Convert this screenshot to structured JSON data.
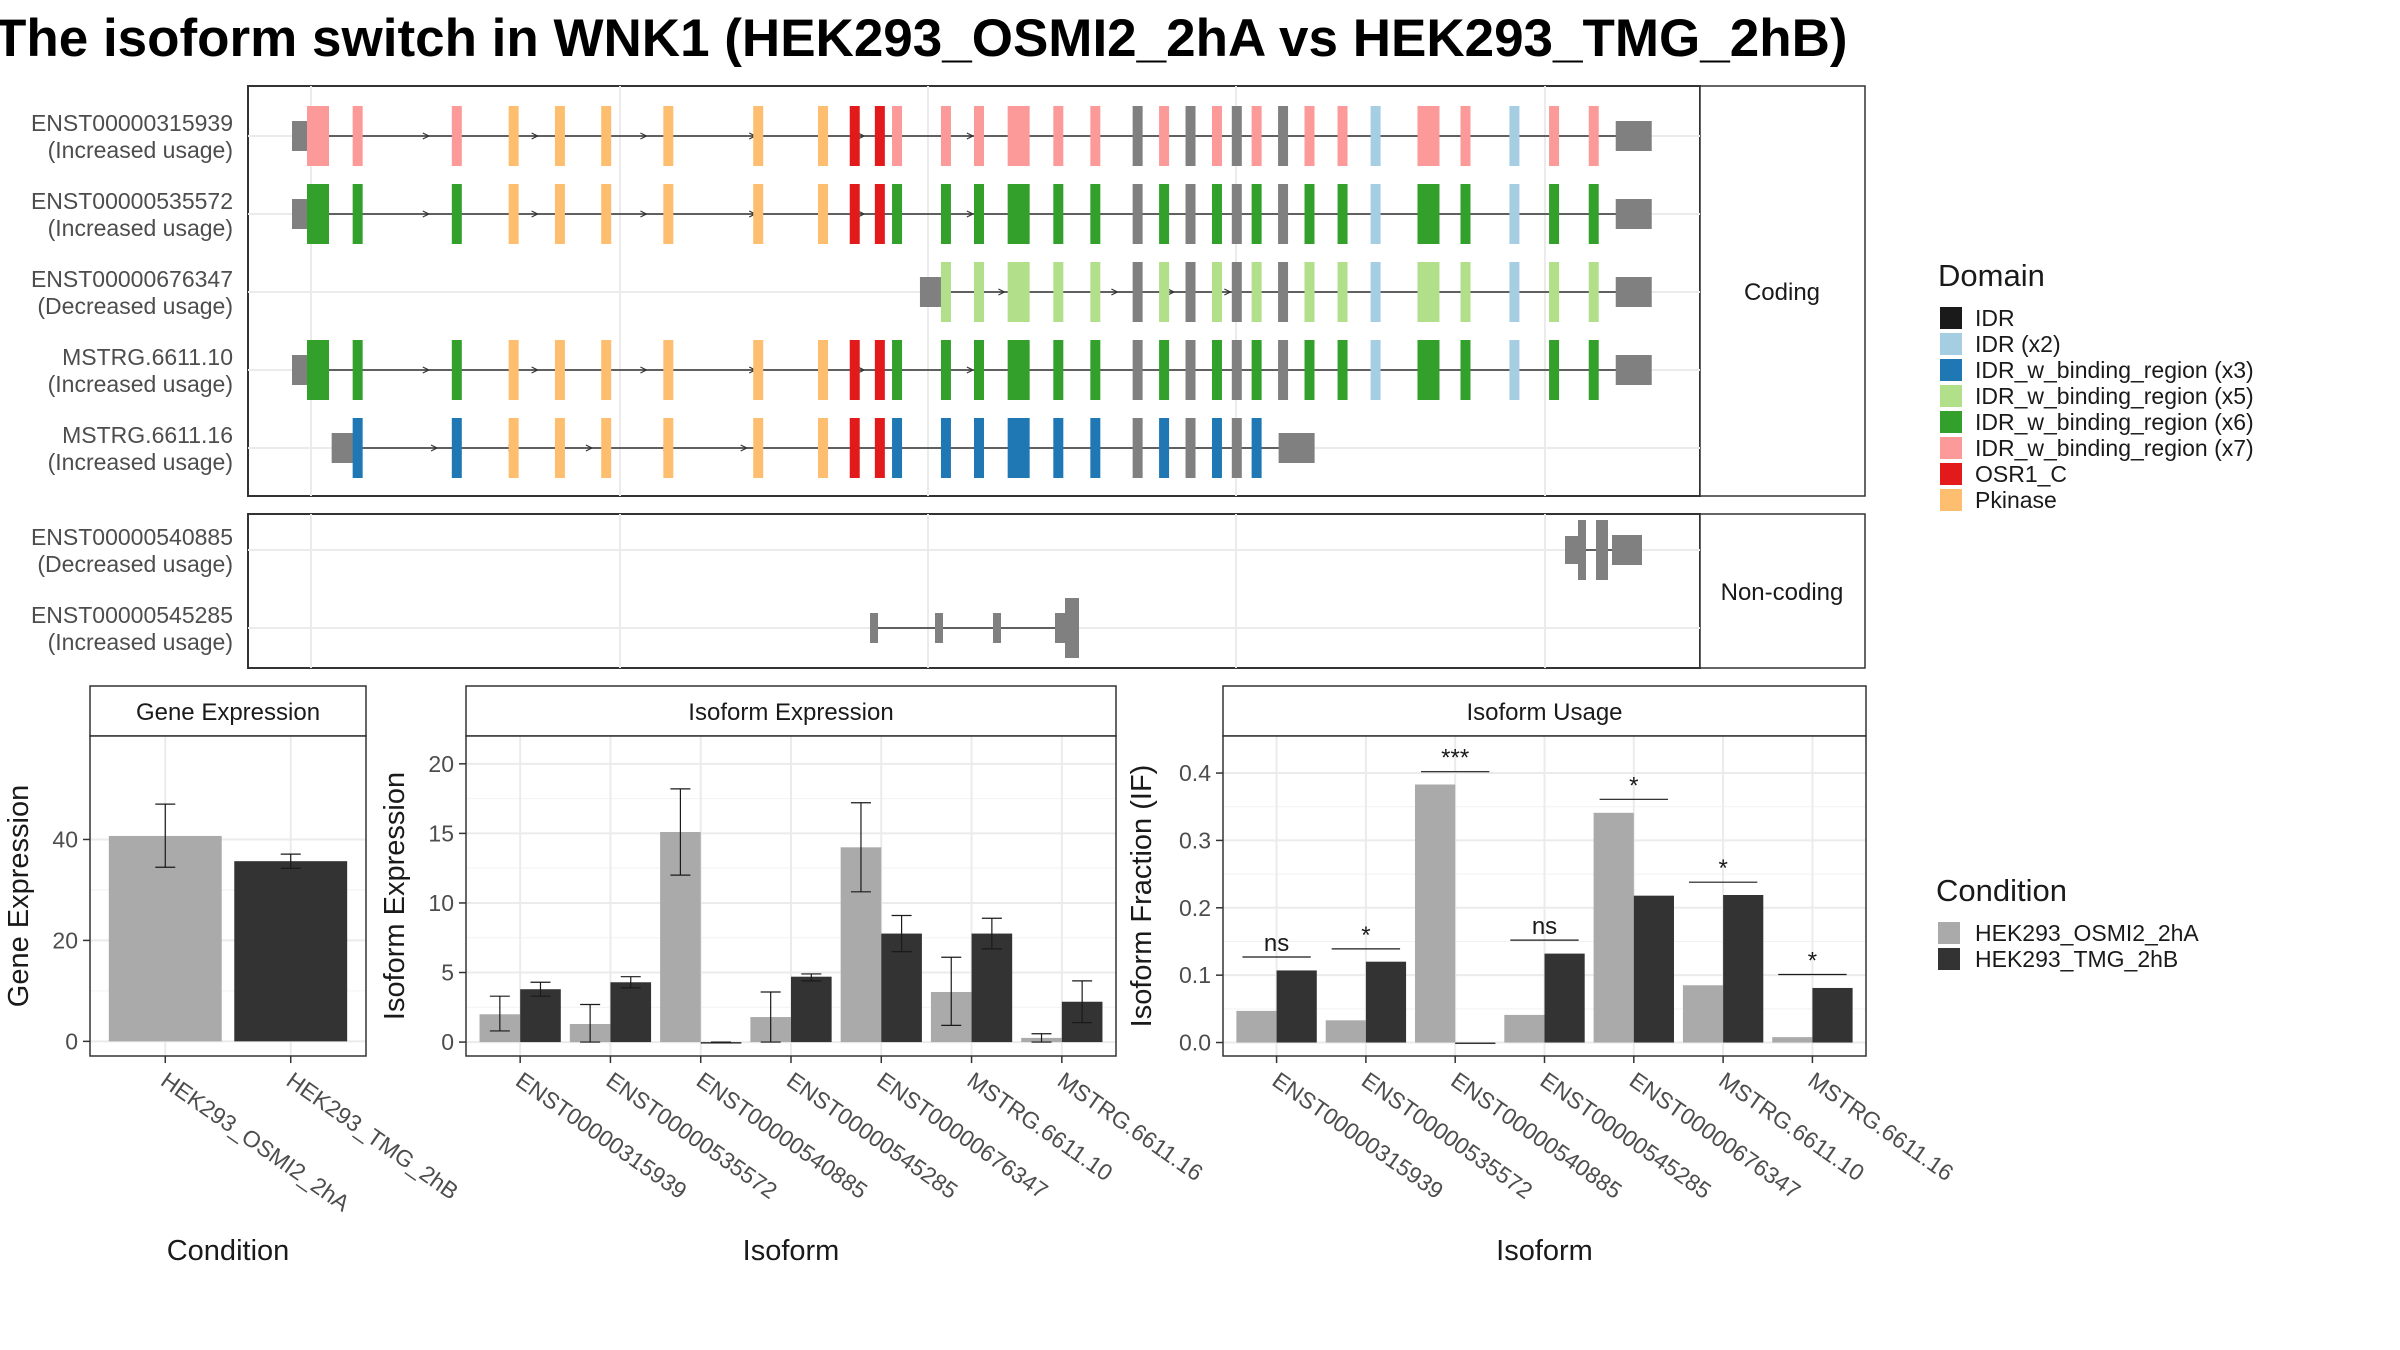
{
  "title": "The isoform switch in WNK1 (HEK293_OSMI2_2hA vs HEK293_TMG_2hB)",
  "colors": {
    "IDR": "#1a1a1a",
    "IDR (x2)": "#a6cee3",
    "IDR_w_binding_region (x3)": "#1f78b4",
    "IDR_w_binding_region (x5)": "#b2df8a",
    "IDR_w_binding_region (x6)": "#33a02c",
    "IDR_w_binding_region (x7)": "#fb9a99",
    "OSR1_C": "#e31a1c",
    "Pkinase": "#fdbf6f",
    "exon": "#808080",
    "cond_a": "#aaaaaa",
    "cond_b": "#333333"
  },
  "structure": {
    "coding_label": "Coding",
    "noncoding_label": "Non-coding",
    "coding": [
      {
        "id": "ENST00000315939",
        "status": "(Increased usage)",
        "fill": "IDR_w_binding_region (x7)",
        "start": 0.0,
        "end": 1.0,
        "utr5_end": 0.03,
        "cds_start": 0.06
      },
      {
        "id": "ENST00000535572",
        "status": "(Increased usage)",
        "fill": "IDR_w_binding_region (x6)",
        "start": 0.0,
        "end": 1.0,
        "utr5_end": 0.03,
        "cds_start": 0.06
      },
      {
        "id": "ENST00000676347",
        "status": "(Decreased usage)",
        "fill": "IDR_w_binding_region (x5)",
        "start": 0.39,
        "end": 1.0,
        "utr5_end": 0.55,
        "cds_start": 0.6
      },
      {
        "id": "MSTRG.6611.10",
        "status": "(Increased usage)",
        "fill": "IDR_w_binding_region (x6)",
        "start": 0.01,
        "end": 1.0,
        "utr5_end": 0.03,
        "cds_start": 0.06
      },
      {
        "id": "MSTRG.6611.16",
        "status": "(Increased usage)",
        "fill": "IDR_w_binding_region (x3)",
        "start": 0.03,
        "end": 0.7,
        "utr5_end": 0.04,
        "cds_start": 0.06
      }
    ],
    "noncoding": [
      {
        "id": "ENST00000540885",
        "status": "(Decreased usage)"
      },
      {
        "id": "ENST00000545285",
        "status": "(Increased usage)"
      }
    ]
  },
  "legend_domain": {
    "title": "Domain",
    "items": [
      "IDR",
      "IDR (x2)",
      "IDR_w_binding_region (x3)",
      "IDR_w_binding_region (x5)",
      "IDR_w_binding_region (x6)",
      "IDR_w_binding_region (x7)",
      "OSR1_C",
      "Pkinase"
    ]
  },
  "legend_condition": {
    "title": "Condition",
    "items": [
      "HEK293_OSMI2_2hA",
      "HEK293_TMG_2hB"
    ]
  },
  "chart_data": [
    {
      "type": "bar",
      "title": "Gene Expression",
      "xlabel": "Condition",
      "ylabel": "Gene Expression",
      "categories": [
        "HEK293_OSMI2_2hA",
        "HEK293_TMG_2hB"
      ],
      "values": [
        40.7,
        35.7
      ],
      "err_low": [
        34.5,
        34.3
      ],
      "err_high": [
        47.0,
        37.1
      ],
      "ylim": [
        -2.9,
        60.5
      ],
      "yticks": [
        0,
        20,
        40
      ],
      "grid": true
    },
    {
      "type": "bar",
      "title": "Isoform Expression",
      "xlabel": "Isoform",
      "ylabel": "Isoform Expression",
      "categories": [
        "ENST00000315939",
        "ENST00000535572",
        "ENST00000540885",
        "ENST00000545285",
        "ENST00000676347",
        "MSTRG.6611.10",
        "MSTRG.6611.16"
      ],
      "series": [
        {
          "name": "HEK293_OSMI2_2hA",
          "values": [
            2.0,
            1.3,
            15.1,
            1.8,
            14.0,
            3.6,
            0.3
          ],
          "err_low": [
            0.8,
            0.0,
            12.0,
            0.0,
            10.8,
            1.2,
            0.0
          ],
          "err_high": [
            3.3,
            2.7,
            18.2,
            3.6,
            17.2,
            6.1,
            0.6
          ]
        },
        {
          "name": "HEK293_TMG_2hB",
          "values": [
            3.8,
            4.3,
            0.0,
            4.7,
            7.8,
            7.8,
            2.9
          ],
          "err_low": [
            3.3,
            3.9,
            0.0,
            4.4,
            6.5,
            6.7,
            1.4
          ],
          "err_high": [
            4.3,
            4.7,
            0.0,
            4.9,
            9.1,
            8.9,
            4.4
          ]
        }
      ],
      "ylim": [
        -1.0,
        22.0
      ],
      "yticks": [
        0,
        5,
        10,
        15,
        20
      ],
      "grid": true
    },
    {
      "type": "bar",
      "title": "Isoform Usage",
      "xlabel": "Isoform",
      "ylabel": "Isoform Fraction (IF)",
      "categories": [
        "ENST00000315939",
        "ENST00000535572",
        "ENST00000540885",
        "ENST00000545285",
        "ENST00000676347",
        "MSTRG.6611.10",
        "MSTRG.6611.16"
      ],
      "series": [
        {
          "name": "HEK293_OSMI2_2hA",
          "values": [
            0.047,
            0.033,
            0.383,
            0.041,
            0.341,
            0.085,
            0.008
          ]
        },
        {
          "name": "HEK293_TMG_2hB",
          "values": [
            0.107,
            0.12,
            0.0,
            0.132,
            0.218,
            0.219,
            0.081
          ]
        }
      ],
      "significance": [
        "ns",
        "*",
        "***",
        "ns",
        "*",
        "*",
        "*"
      ],
      "sig_y": [
        0.127,
        0.139,
        0.402,
        0.152,
        0.361,
        0.238,
        0.101
      ],
      "ylim": [
        -0.02,
        0.455
      ],
      "yticks": [
        0.0,
        0.1,
        0.2,
        0.3,
        0.4
      ],
      "ytick_labels": [
        "0.0",
        "0.1",
        "0.2",
        "0.3",
        "0.4"
      ],
      "grid": true
    }
  ]
}
